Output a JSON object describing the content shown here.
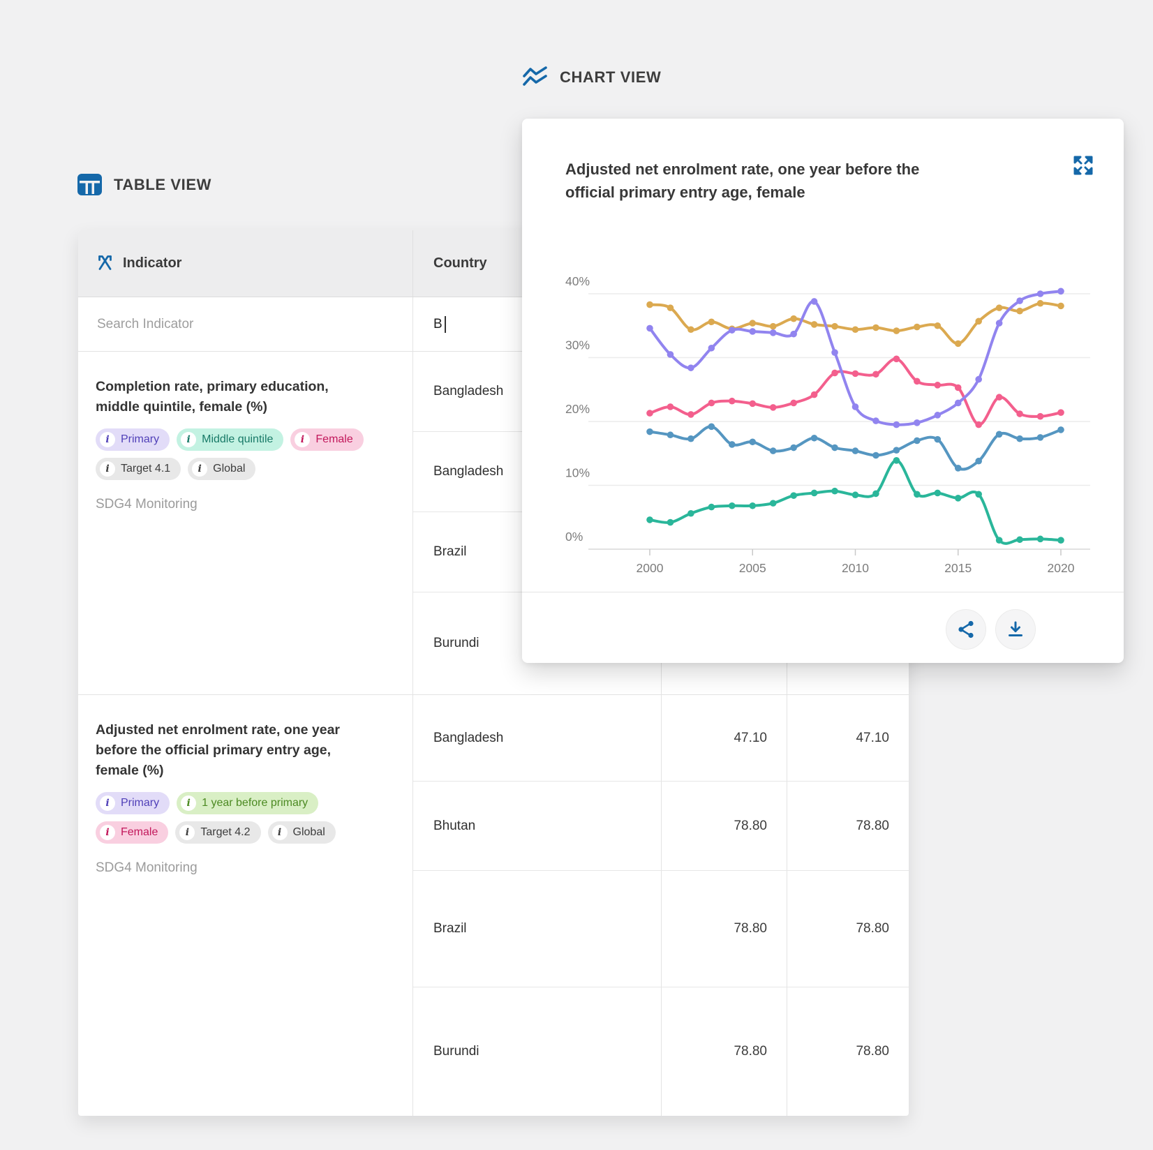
{
  "page": {
    "background": "#f1f1f2",
    "accent": "#1568a9"
  },
  "headings": {
    "chart_view": "CHART VIEW",
    "table_view": "TABLE VIEW"
  },
  "icons": {
    "info": "i"
  },
  "table": {
    "header": {
      "indicator": "Indicator",
      "country": "Country"
    },
    "search": {
      "indicator_placeholder": "Search Indicator",
      "country_value": "B"
    },
    "sections": [
      {
        "title": "Completion rate, primary education, middle quintile, female (%)",
        "source": "SDG4 Monitoring",
        "tags": [
          {
            "label": "Primary",
            "bg": "#e2dcf8",
            "fg": "#5040b8"
          },
          {
            "label": "Middle quintile",
            "bg": "#c3f2e2",
            "fg": "#187a67"
          },
          {
            "label": "Female",
            "bg": "#f9cfe0",
            "fg": "#c2185b"
          },
          {
            "label": "Target 4.1",
            "bg": "#e8e8e8",
            "fg": "#3d3d3d"
          },
          {
            "label": "Global",
            "bg": "#e8e8e8",
            "fg": "#3d3d3d"
          }
        ],
        "rows": [
          {
            "country": "Bangladesh",
            "v1": "",
            "v2": ""
          },
          {
            "country": "Bangladesh",
            "v1": "",
            "v2": ""
          },
          {
            "country": "Brazil",
            "v1": "",
            "v2": ""
          },
          {
            "country": "Burundi",
            "v1": "",
            "v2": ""
          }
        ]
      },
      {
        "title": "Adjusted net enrolment rate, one year before the official primary entry age, female (%)",
        "source": "SDG4 Monitoring",
        "tags": [
          {
            "label": "Primary",
            "bg": "#e2dcf8",
            "fg": "#5040b8"
          },
          {
            "label": "1 year before primary",
            "bg": "#d9efc5",
            "fg": "#4c8a22"
          },
          {
            "label": "Female",
            "bg": "#f9cfe0",
            "fg": "#c2185b"
          },
          {
            "label": "Target 4.2",
            "bg": "#e8e8e8",
            "fg": "#3d3d3d"
          },
          {
            "label": "Global",
            "bg": "#e8e8e8",
            "fg": "#3d3d3d"
          }
        ],
        "rows": [
          {
            "country": "Bangladesh",
            "v1": "47.10",
            "v2": "47.10"
          },
          {
            "country": "Bhutan",
            "v1": "78.80",
            "v2": "78.80"
          },
          {
            "country": "Brazil",
            "v1": "78.80",
            "v2": "78.80"
          },
          {
            "country": "Burundi",
            "v1": "78.80",
            "v2": "78.80"
          }
        ]
      }
    ]
  },
  "chart_card": {
    "title": "Adjusted net enrolment rate, one year before the official primary entry age, female"
  },
  "chart_data": {
    "type": "line",
    "title": "Adjusted net enrolment rate, one year before the official primary entry age, female",
    "unit": "%",
    "x": [
      2000,
      2001,
      2002,
      2003,
      2004,
      2005,
      2006,
      2007,
      2008,
      2009,
      2010,
      2011,
      2012,
      2013,
      2014,
      2015,
      2016,
      2017,
      2018,
      2019,
      2020
    ],
    "x_tick_labels": [
      "2000",
      "2005",
      "2010",
      "2015",
      "2020"
    ],
    "x_tick_indices": [
      0,
      5,
      10,
      15,
      20
    ],
    "y_tick_labels": [
      "40%",
      "30%",
      "20%",
      "10%",
      "0%"
    ],
    "y_tick_values": [
      40,
      30,
      20,
      10,
      0
    ],
    "ylim": [
      0,
      42
    ],
    "grid": "horizontal",
    "legend": "none",
    "series": [
      {
        "name": "series-orange",
        "color": "#dba950",
        "values": [
          38.3,
          37.8,
          34.4,
          35.6,
          34.5,
          35.4,
          34.9,
          36.1,
          35.2,
          34.9,
          34.4,
          34.7,
          34.2,
          34.8,
          35.0,
          32.2,
          35.7,
          37.8,
          37.3,
          38.5,
          38.1
        ]
      },
      {
        "name": "series-pink",
        "color": "#f35f8d",
        "values": [
          21.3,
          22.3,
          21.1,
          22.9,
          23.2,
          22.8,
          22.2,
          22.9,
          24.2,
          27.6,
          27.5,
          27.4,
          29.8,
          26.3,
          25.7,
          25.3,
          19.5,
          23.8,
          21.2,
          20.8,
          21.4
        ]
      },
      {
        "name": "series-blue",
        "color": "#5596c1",
        "values": [
          18.4,
          17.9,
          17.3,
          19.2,
          16.4,
          16.8,
          15.4,
          15.9,
          17.4,
          15.9,
          15.4,
          14.7,
          15.5,
          17.0,
          17.2,
          12.7,
          13.8,
          18.0,
          17.3,
          17.5,
          18.7
        ]
      },
      {
        "name": "series-teal",
        "color": "#2ab69a",
        "values": [
          4.6,
          4.2,
          5.6,
          6.6,
          6.8,
          6.8,
          7.2,
          8.4,
          8.8,
          9.1,
          8.5,
          8.7,
          13.9,
          8.6,
          8.8,
          8.0,
          8.6,
          1.4,
          1.5,
          1.6,
          1.4
        ]
      },
      {
        "name": "series-purple",
        "color": "#9184ef",
        "values": [
          34.6,
          30.5,
          28.4,
          31.5,
          34.3,
          34.1,
          33.9,
          33.7,
          38.8,
          30.8,
          22.3,
          20.1,
          19.5,
          19.8,
          21.0,
          22.9,
          26.6,
          35.4,
          38.9,
          40.0,
          40.4
        ]
      }
    ]
  }
}
